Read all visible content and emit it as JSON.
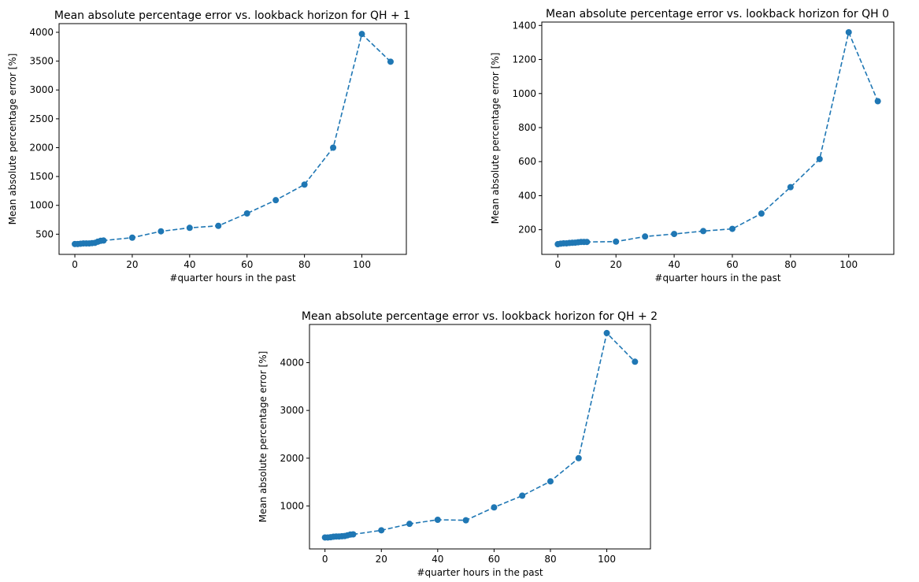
{
  "chart_data": [
    {
      "type": "line",
      "title": "Mean absolute percentage error vs. lookback horizon for QH + 1",
      "xlabel": "#quarter hours in the past",
      "ylabel": "Mean absolute percentage error [%]",
      "xlim": [
        -5.5,
        115.5
      ],
      "ylim": [
        150,
        4150
      ],
      "xticks": [
        "0",
        "20",
        "40",
        "60",
        "80",
        "100"
      ],
      "yticks": [
        "500",
        "1000",
        "1500",
        "2000",
        "2500",
        "3000",
        "3500",
        "4000"
      ],
      "grid": false,
      "line_style": "dashed",
      "marker": "circle",
      "color": "#1f77b4",
      "series": [
        {
          "x": [
            0,
            1,
            2,
            3,
            4,
            5,
            6,
            7,
            8,
            9,
            10,
            20,
            30,
            40,
            50,
            60,
            70,
            80,
            90,
            100,
            110
          ],
          "y": [
            330,
            330,
            335,
            340,
            340,
            340,
            345,
            350,
            370,
            385,
            390,
            440,
            550,
            610,
            645,
            860,
            1090,
            1360,
            2000,
            3970,
            3490
          ]
        }
      ]
    },
    {
      "type": "line",
      "title": "Mean absolute percentage error vs. lookback horizon for QH 0",
      "xlabel": "#quarter hours in the past",
      "ylabel": "Mean absolute percentage error [%]",
      "xlim": [
        -5.5,
        115.5
      ],
      "ylim": [
        55,
        1420
      ],
      "xticks": [
        "0",
        "20",
        "40",
        "60",
        "80",
        "100"
      ],
      "yticks": [
        "200",
        "400",
        "600",
        "800",
        "1000",
        "1200",
        "1400"
      ],
      "grid": false,
      "line_style": "dashed",
      "marker": "circle",
      "color": "#1f77b4",
      "series": [
        {
          "x": [
            0,
            1,
            2,
            3,
            4,
            5,
            6,
            7,
            8,
            9,
            10,
            20,
            30,
            40,
            50,
            60,
            70,
            80,
            90,
            100,
            110
          ],
          "y": [
            115,
            118,
            120,
            120,
            122,
            123,
            124,
            126,
            128,
            128,
            128,
            130,
            160,
            175,
            192,
            205,
            295,
            450,
            615,
            1360,
            955
          ]
        }
      ]
    },
    {
      "type": "line",
      "title": "Mean absolute percentage error vs. lookback horizon for QH + 2",
      "xlabel": "#quarter hours in the past",
      "ylabel": "Mean absolute percentage error [%]",
      "xlim": [
        -5.5,
        115.5
      ],
      "ylim": [
        100,
        4800
      ],
      "xticks": [
        "0",
        "20",
        "40",
        "60",
        "80",
        "100"
      ],
      "yticks": [
        "1000",
        "2000",
        "3000",
        "4000"
      ],
      "grid": false,
      "line_style": "dashed",
      "marker": "circle",
      "color": "#1f77b4",
      "series": [
        {
          "x": [
            0,
            1,
            2,
            3,
            4,
            5,
            6,
            7,
            8,
            9,
            10,
            20,
            30,
            40,
            50,
            60,
            70,
            80,
            90,
            100,
            110
          ],
          "y": [
            340,
            340,
            345,
            355,
            360,
            360,
            365,
            370,
            385,
            400,
            405,
            490,
            625,
            710,
            700,
            970,
            1215,
            1515,
            2000,
            4620,
            4020
          ]
        }
      ]
    }
  ]
}
